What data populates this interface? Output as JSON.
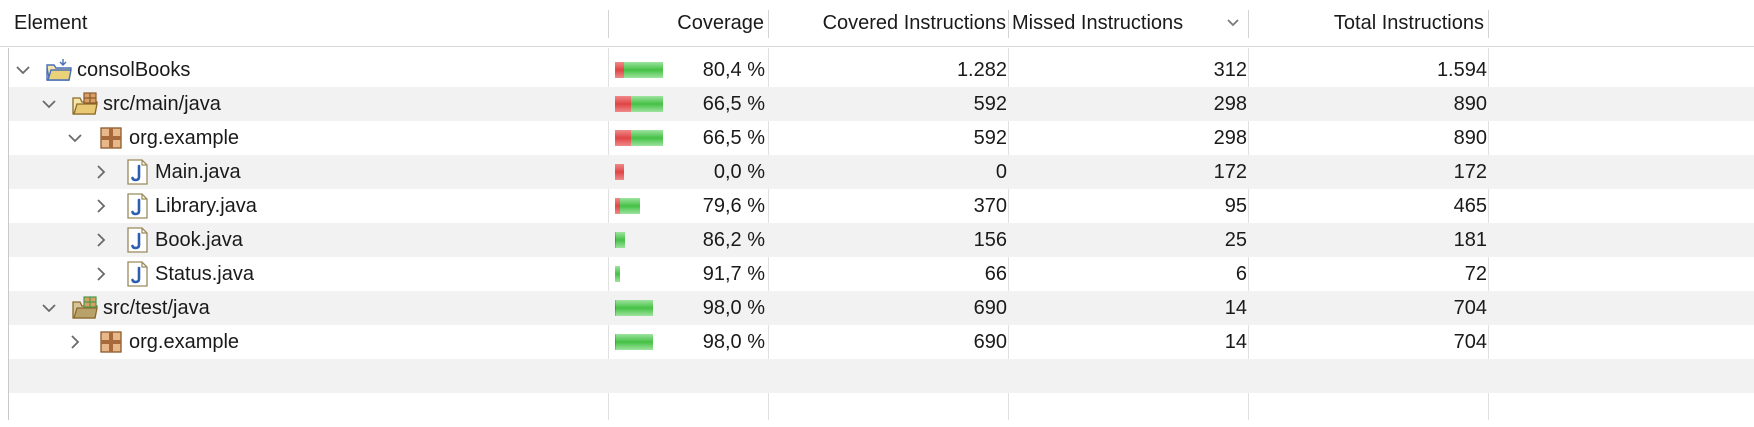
{
  "header": {
    "element": "Element",
    "coverage": "Coverage",
    "covered": "Covered Instructions",
    "missed": "Missed Instructions",
    "total": "Total Instructions"
  },
  "rows": [
    {
      "label": "consolBooks",
      "icon": "project-folder-icon",
      "coverage": "80,4 %",
      "covered": "1.282",
      "missed": "312",
      "total": "1.594",
      "coverage_fraction": 0.804
    },
    {
      "label": "src/main/java",
      "icon": "source-folder-icon",
      "coverage": "66,5 %",
      "covered": "592",
      "missed": "298",
      "total": "890",
      "coverage_fraction": 0.665
    },
    {
      "label": "org.example",
      "icon": "package-icon",
      "coverage": "66,5 %",
      "covered": "592",
      "missed": "298",
      "total": "890",
      "coverage_fraction": 0.665
    },
    {
      "label": "Main.java",
      "icon": "java-file-icon",
      "coverage": "0,0 %",
      "covered": "0",
      "missed": "172",
      "total": "172",
      "coverage_fraction": 0.0
    },
    {
      "label": "Library.java",
      "icon": "java-file-icon",
      "coverage": "79,6 %",
      "covered": "370",
      "missed": "95",
      "total": "465",
      "coverage_fraction": 0.796
    },
    {
      "label": "Book.java",
      "icon": "java-file-icon",
      "coverage": "86,2 %",
      "covered": "156",
      "missed": "25",
      "total": "181",
      "coverage_fraction": 0.862
    },
    {
      "label": "Status.java",
      "icon": "java-file-icon",
      "coverage": "91,7 %",
      "covered": "66",
      "missed": "6",
      "total": "72",
      "coverage_fraction": 0.917
    },
    {
      "label": "src/test/java",
      "icon": "test-source-folder-icon",
      "coverage": "98,0 %",
      "covered": "690",
      "missed": "14",
      "total": "704",
      "coverage_fraction": 0.98
    },
    {
      "label": "org.example",
      "icon": "package-icon",
      "coverage": "98,0 %",
      "covered": "690",
      "missed": "14",
      "total": "704",
      "coverage_fraction": 0.98
    }
  ]
}
